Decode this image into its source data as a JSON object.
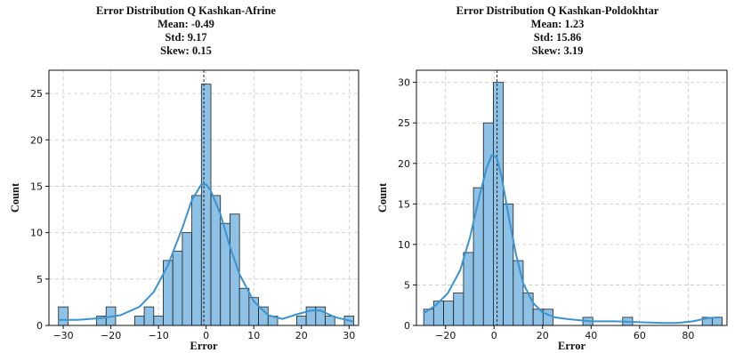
{
  "colors": {
    "bar": "#8ec1e6",
    "bar_edge": "#1f1f1f",
    "kde": "#3b93cf",
    "grid": "#c8c8c8"
  },
  "chart_data": [
    {
      "type": "bar",
      "title_lines": [
        "Error Distribution Q Kashkan-Afrine",
        "Mean: -0.49",
        "Std: 9.17",
        "Skew: 0.15"
      ],
      "xlabel": "Error",
      "ylabel": "Count",
      "xlim": [
        -33,
        32
      ],
      "ylim": [
        0,
        27.5
      ],
      "xticks": [
        -30,
        -20,
        -10,
        0,
        10,
        20,
        30
      ],
      "yticks": [
        0,
        5,
        10,
        15,
        20,
        25
      ],
      "grid": true,
      "bin_start": -31,
      "bin_width": 2,
      "counts": [
        2,
        0,
        0,
        0,
        1,
        2,
        0,
        0,
        1,
        2,
        1,
        7,
        8,
        10,
        14,
        26,
        14,
        11,
        12,
        4,
        3,
        2,
        1,
        0,
        0,
        1,
        2,
        2,
        1,
        0,
        1
      ],
      "kde": [
        [
          -31,
          0.6
        ],
        [
          -27,
          0.6
        ],
        [
          -22,
          0.8
        ],
        [
          -18,
          1.1
        ],
        [
          -14,
          2.0
        ],
        [
          -11,
          3.6
        ],
        [
          -8,
          6.5
        ],
        [
          -5,
          10.5
        ],
        [
          -3,
          13.5
        ],
        [
          -1,
          15.2
        ],
        [
          0,
          15.2
        ],
        [
          1,
          14.5
        ],
        [
          3,
          12.0
        ],
        [
          5,
          8.5
        ],
        [
          7,
          5.5
        ],
        [
          10,
          2.6
        ],
        [
          13,
          1.1
        ],
        [
          16,
          0.7
        ],
        [
          19,
          1.2
        ],
        [
          22,
          1.6
        ],
        [
          24,
          1.6
        ],
        [
          27,
          0.9
        ],
        [
          31,
          0.4
        ]
      ],
      "mean_line": -0.49
    },
    {
      "type": "bar",
      "title_lines": [
        "Error Distribution Q Kashkan-Poldokhtar",
        "Mean: 1.23",
        "Std: 15.86",
        "Skew: 3.19"
      ],
      "xlabel": "Error",
      "ylabel": "Count",
      "xlim": [
        -32,
        96
      ],
      "ylim": [
        0,
        31.5
      ],
      "xticks": [
        -20,
        0,
        20,
        40,
        60,
        80,
        100
      ],
      "yticks": [
        0,
        5,
        10,
        15,
        20,
        25,
        30
      ],
      "grid": true,
      "bin_start": -29,
      "bin_width": 4.1,
      "counts": [
        2,
        3,
        3,
        4,
        9,
        17,
        25,
        30,
        15,
        8,
        4,
        2,
        2,
        0,
        0,
        0,
        1,
        0,
        0,
        0,
        1,
        0,
        0,
        0,
        0,
        0,
        0,
        0,
        1,
        1
      ],
      "kde": [
        [
          -29,
          1.5
        ],
        [
          -24,
          2.5
        ],
        [
          -19,
          4.0
        ],
        [
          -14,
          6.8
        ],
        [
          -10,
          10.8
        ],
        [
          -6,
          16.0
        ],
        [
          -3,
          19.5
        ],
        [
          -1,
          21.0
        ],
        [
          1,
          20.8
        ],
        [
          3,
          18.5
        ],
        [
          6,
          13.5
        ],
        [
          9,
          8.8
        ],
        [
          12,
          5.2
        ],
        [
          16,
          2.8
        ],
        [
          20,
          1.6
        ],
        [
          25,
          1.0
        ],
        [
          30,
          0.8
        ],
        [
          40,
          0.5
        ],
        [
          50,
          0.5
        ],
        [
          60,
          0.4
        ],
        [
          70,
          0.3
        ],
        [
          75,
          0.3
        ],
        [
          82,
          0.5
        ],
        [
          88,
          0.9
        ],
        [
          93,
          1.0
        ]
      ],
      "mean_line": 1.23
    }
  ]
}
